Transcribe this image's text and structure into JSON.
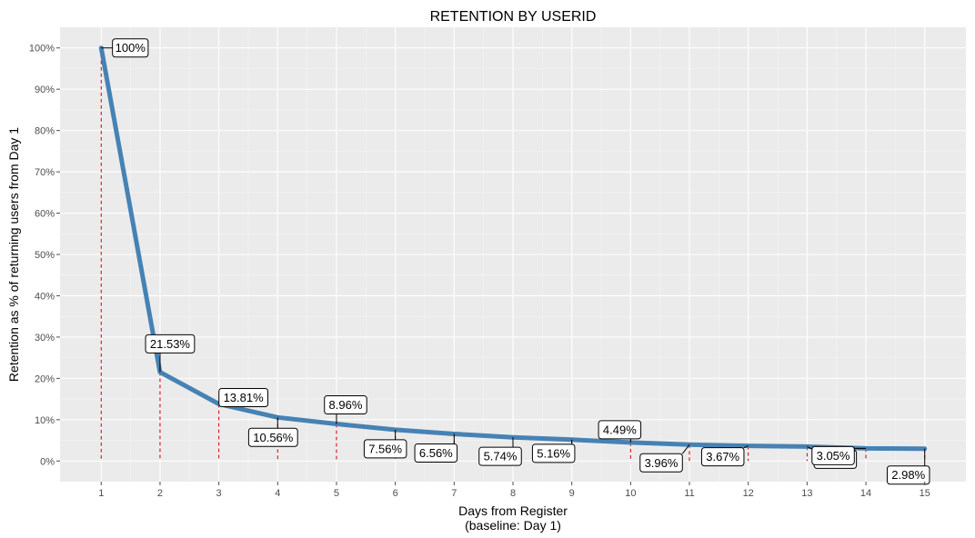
{
  "chart_data": {
    "type": "line",
    "title": "RETENTION BY USERID",
    "xlabel_line1": "Days from Register",
    "xlabel_line2": "(baseline: Day 1)",
    "ylabel": "Retention as % of returning users from Day 1",
    "x": [
      1,
      2,
      3,
      4,
      5,
      6,
      7,
      8,
      9,
      10,
      11,
      12,
      13,
      14,
      15
    ],
    "y": [
      100,
      21.53,
      13.81,
      10.56,
      8.96,
      7.56,
      6.56,
      5.74,
      5.16,
      4.49,
      3.96,
      3.67,
      3.49,
      3.05,
      2.98
    ],
    "labels": [
      "100%",
      "21.53%",
      "13.81%",
      "10.56%",
      "8.96%",
      "7.56%",
      "6.56%",
      "5.74%",
      "5.16%",
      "4.49%",
      "3.96%",
      "3.67%",
      "3.49%",
      "3.05%",
      "2.98%"
    ],
    "xticks": [
      "1",
      "2",
      "3",
      "4",
      "5",
      "6",
      "7",
      "8",
      "9",
      "10",
      "11",
      "12",
      "13",
      "14",
      "15"
    ],
    "yticks": [
      "0%",
      "10%",
      "20%",
      "30%",
      "40%",
      "50%",
      "60%",
      "70%",
      "80%",
      "90%",
      "100%"
    ],
    "xlim": [
      0.3,
      15.7
    ],
    "ylim": [
      -5,
      105
    ],
    "grid": true,
    "line_color": "#4682b4",
    "drop_line_color": "#cc0000",
    "panel_color": "#ebebeb"
  }
}
